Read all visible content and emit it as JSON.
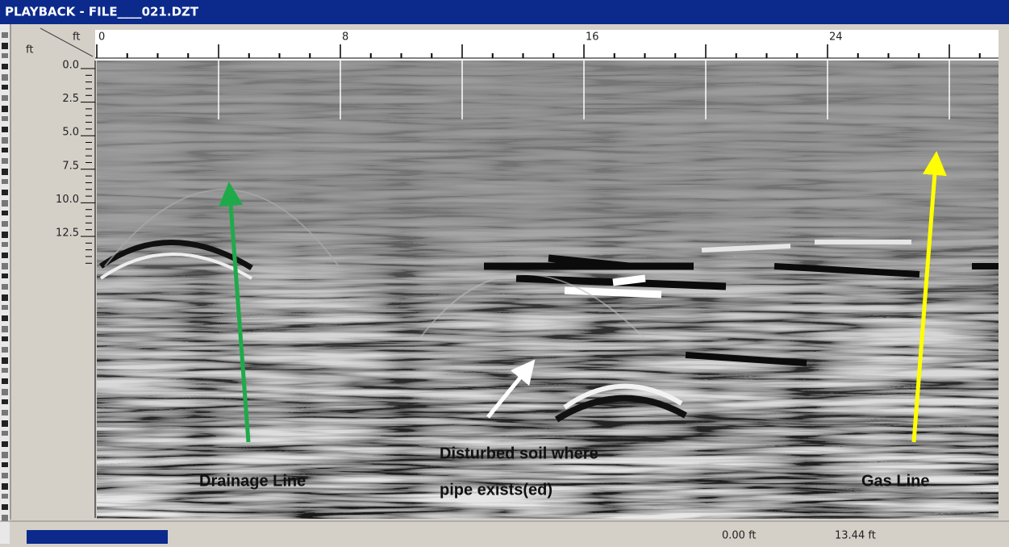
{
  "window": {
    "title": "PLAYBACK - FILE____021.DZT"
  },
  "x_axis": {
    "unit": "ft",
    "ticks": [
      "0",
      "8",
      "16",
      "24"
    ]
  },
  "y_axis": {
    "unit": "ft",
    "ticks": [
      "0.0",
      "2.5",
      "5.0",
      "7.5",
      "10.0",
      "12.5"
    ]
  },
  "annotations": [
    {
      "lines": [
        "Drainage Line"
      ]
    },
    {
      "lines": [
        "Disturbed soil where",
        "pipe exists(ed)"
      ]
    },
    {
      "lines": [
        "Gas Line"
      ]
    }
  ],
  "status": {
    "position": "0.00 ft",
    "depth": "13.44 ft"
  }
}
